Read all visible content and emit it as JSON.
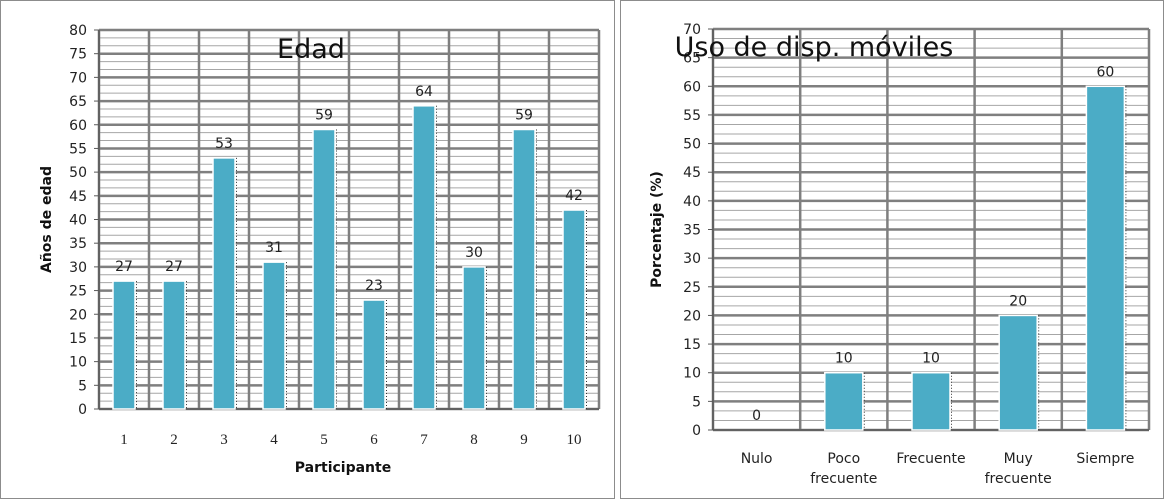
{
  "bar_color": "#4bacc6",
  "grid_color": "#a6a6a6",
  "chart_data": [
    {
      "type": "bar",
      "title": "Edad",
      "xlabel": "Participante",
      "ylabel": "Años de edad",
      "categories": [
        "1",
        "2",
        "3",
        "4",
        "5",
        "6",
        "7",
        "8",
        "9",
        "10"
      ],
      "values": [
        27,
        27,
        53,
        31,
        59,
        23,
        64,
        30,
        59,
        42
      ],
      "ylim": [
        0,
        80
      ],
      "ytick_step": 5,
      "grid": true,
      "data_labels": true
    },
    {
      "type": "bar",
      "title": "Uso de disp. móviles",
      "xlabel": "",
      "ylabel": "Porcentaje (%)",
      "categories": [
        "Nulo",
        "Poco frecuente",
        "Frecuente",
        "Muy frecuente",
        "Siempre"
      ],
      "values": [
        0,
        10,
        10,
        20,
        60
      ],
      "ylim": [
        0,
        70
      ],
      "ytick_step": 5,
      "grid": true,
      "data_labels": true
    }
  ]
}
